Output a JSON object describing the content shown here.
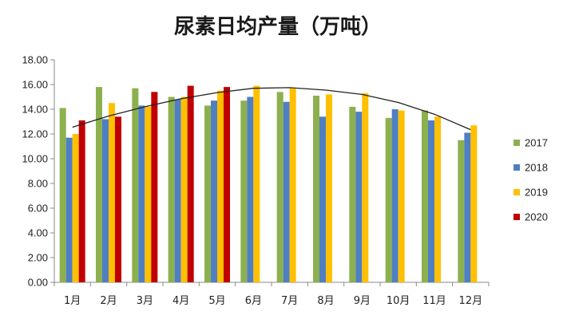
{
  "chart_data": {
    "type": "bar",
    "title": "尿素日均产量（万吨）",
    "categories": [
      "1月",
      "2月",
      "3月",
      "4月",
      "5月",
      "6月",
      "7月",
      "8月",
      "9月",
      "10月",
      "11月",
      "12月"
    ],
    "series": [
      {
        "name": "2017",
        "color": "#8db04f",
        "values": [
          14.1,
          15.8,
          15.7,
          15.0,
          14.3,
          14.7,
          15.4,
          15.1,
          14.2,
          13.3,
          13.9,
          11.5
        ]
      },
      {
        "name": "2018",
        "color": "#4f7fc3",
        "values": [
          11.7,
          13.2,
          14.3,
          14.8,
          14.7,
          15.0,
          14.6,
          13.4,
          13.8,
          14.0,
          13.1,
          12.1
        ]
      },
      {
        "name": "2019",
        "color": "#ffc000",
        "values": [
          12.0,
          14.5,
          14.2,
          15.0,
          15.5,
          15.9,
          15.7,
          15.2,
          15.3,
          13.9,
          13.4,
          12.7
        ]
      },
      {
        "name": "2020",
        "color": "#c00000",
        "values": [
          13.1,
          13.4,
          15.4,
          15.9,
          15.8,
          null,
          null,
          null,
          null,
          null,
          null,
          null
        ]
      }
    ],
    "trendline": {
      "type": "polynomial",
      "values": [
        12.55,
        13.45,
        14.2,
        14.85,
        15.35,
        15.7,
        15.75,
        15.55,
        15.2,
        14.55,
        13.6,
        12.35
      ]
    },
    "yticks": [
      "18.00",
      "16.00",
      "14.00",
      "12.00",
      "10.00",
      "8.00",
      "6.00",
      "4.00",
      "2.00",
      "0.00"
    ],
    "ylim": [
      0,
      18
    ],
    "legend_position": "right",
    "grid": false
  }
}
